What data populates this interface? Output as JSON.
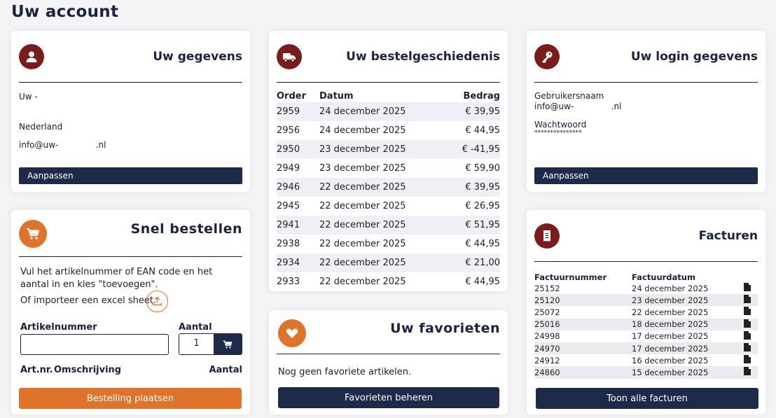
{
  "page": {
    "title": "Uw account"
  },
  "gegevens": {
    "title": "Uw gegevens",
    "icon": "user-icon",
    "name_line": "Uw -",
    "country": "Nederland",
    "email": "info@uw-              .nl",
    "button": "Aanpassen"
  },
  "history": {
    "title": "Uw bestelgeschiedenis",
    "icon": "truck-icon",
    "columns": [
      "Order",
      "Datum",
      "Bedrag"
    ],
    "rows": [
      [
        "2959",
        "24 december 2025",
        "€ 39,95"
      ],
      [
        "2956",
        "24 december 2025",
        "€ 44,95"
      ],
      [
        "2950",
        "23 december 2025",
        "€ -41,95"
      ],
      [
        "2949",
        "23 december 2025",
        "€ 59,90"
      ],
      [
        "2946",
        "22 december 2025",
        "€ 39,95"
      ],
      [
        "2945",
        "22 december 2025",
        "€ 26,95"
      ],
      [
        "2941",
        "22 december 2025",
        "€ 51,95"
      ],
      [
        "2938",
        "22 december 2025",
        "€ 44,95"
      ],
      [
        "2934",
        "22 december 2025",
        "€ 21,00"
      ],
      [
        "2933",
        "22 december 2025",
        "€ 44,95"
      ]
    ]
  },
  "login": {
    "title": "Uw login gegevens",
    "icon": "key-icon",
    "username_label": "Gebruikersnaam",
    "username": "info@uw-              .nl",
    "password_label": "Wachtwoord",
    "password": "***************",
    "button": "Aanpassen"
  },
  "quick": {
    "title": "Snel bestellen",
    "icon": "cart-icon",
    "instructions": "Vul het artikelnummer of EAN code en het aantal in en kies \"toevoegen\".",
    "import_text": "Of importeer een excel sheet.",
    "article_label": "Artikelnummer",
    "qty_label": "Aantal",
    "qty_value": "1",
    "col_artnr": "Art.nr.",
    "col_desc": "Omschrijving",
    "col_qty": "Aantal",
    "button": "Bestelling plaatsen"
  },
  "favorites": {
    "title": "Uw favorieten",
    "icon": "heart-icon",
    "empty_text": "Nog geen favoriete artikelen.",
    "button": "Favorieten beheren"
  },
  "invoices": {
    "title": "Facturen",
    "icon": "receipt-icon",
    "columns": [
      "Factuurnummer",
      "Factuurdatum"
    ],
    "rows": [
      [
        "25152",
        "24 december 2025"
      ],
      [
        "25120",
        "23 december 2025"
      ],
      [
        "25072",
        "22 december 2025"
      ],
      [
        "25016",
        "18 december 2025"
      ],
      [
        "24998",
        "17 december 2025"
      ],
      [
        "24970",
        "17 december 2025"
      ],
      [
        "24912",
        "16 december 2025"
      ],
      [
        "24860",
        "15 december 2025"
      ]
    ],
    "button": "Toon alle facturen"
  },
  "colors": {
    "navy": "#1e2a4a",
    "burgundy": "#7a1c1c",
    "orange": "#e0732a"
  }
}
